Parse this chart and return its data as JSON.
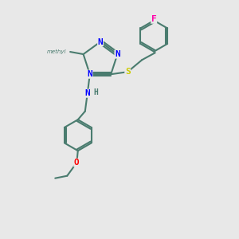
{
  "bg_color": "#e8e8e8",
  "bond_color": "#4a7c6f",
  "bond_lw": 1.5,
  "atom_colors": {
    "N": "#0000ff",
    "S": "#cccc00",
    "F": "#ff00aa",
    "O": "#ff0000",
    "C": "#4a7c6f",
    "H": "#4a7c6f"
  },
  "font_size": 8,
  "font_size_small": 7
}
